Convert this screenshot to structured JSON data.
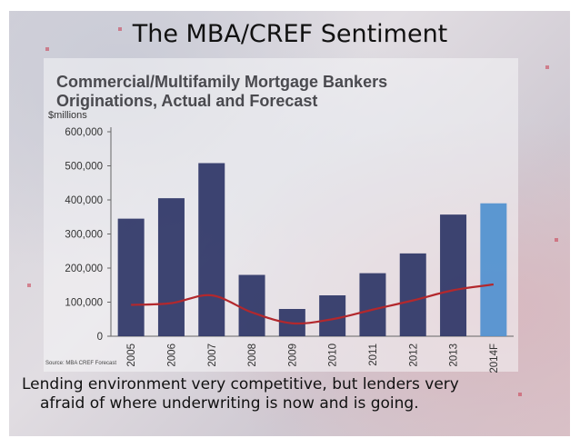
{
  "slide": {
    "title": "The MBA/CREF Sentiment",
    "source": "Source: MBA CREF Forecast",
    "caption_line1": "Lending environment very competitive, but lenders very",
    "caption_line2": "afraid of where underwriting is now and is going."
  },
  "chart_data": {
    "type": "bar",
    "title": "Commercial/Multifamily Mortgage Bankers\nOriginations, Actual and Forecast",
    "unit_label": "$millions",
    "categories": [
      "2005",
      "2006",
      "2007",
      "2008",
      "2009",
      "2010",
      "2011",
      "2012",
      "2013",
      "2014F"
    ],
    "series": [
      {
        "type": "bar",
        "values": [
          345000,
          405000,
          508000,
          180000,
          80000,
          120000,
          185000,
          243000,
          357000,
          390000
        ]
      },
      {
        "type": "line",
        "values": [
          92000,
          97000,
          120000,
          70000,
          38000,
          50000,
          78000,
          105000,
          135000,
          152000
        ]
      }
    ],
    "ylim": [
      0,
      600000
    ],
    "yticks": [
      "0",
      "100,000",
      "200,000",
      "300,000",
      "400,000",
      "500,000",
      "600,000"
    ],
    "ytick_values": [
      0,
      100000,
      200000,
      300000,
      400000,
      500000,
      600000
    ],
    "colors": {
      "bar": "#2e3566",
      "forecast_bar": "#4f90cf",
      "line": "#b3282d",
      "axis": "#666666"
    },
    "forecast_category": "2014F",
    "grid": false
  }
}
